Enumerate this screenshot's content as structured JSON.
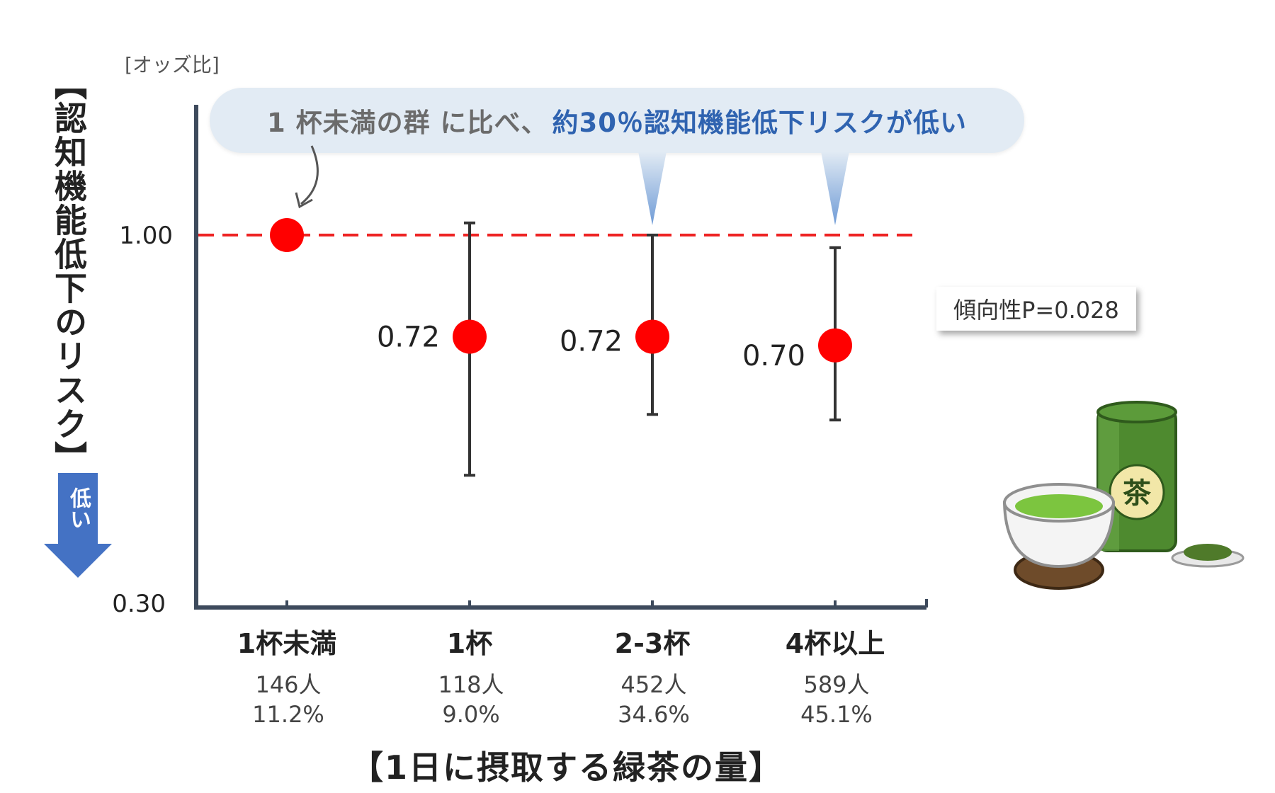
{
  "chart_data": {
    "type": "scatter",
    "y_unit_label": "[オッズ比]",
    "ylabel": "【認知機能低下のリスク】",
    "xlabel": "【1日に摂取する緑茶の量】",
    "yscale": "log",
    "ylim": [
      0.3,
      1.3
    ],
    "yticks": [
      "1.00",
      "0.30"
    ],
    "reference_line": 1.0,
    "categories": [
      "1杯未満",
      "1杯",
      "2-3杯",
      "4杯以上"
    ],
    "counts": [
      "146人",
      "118人",
      "452人",
      "589人"
    ],
    "percents": [
      "11.2%",
      "9.0%",
      "34.6%",
      "45.1%"
    ],
    "points": [
      {
        "odds": 1.0,
        "label": "",
        "ci": null
      },
      {
        "odds": 0.72,
        "label": "0.72",
        "ci": [
          0.46,
          1.04
        ]
      },
      {
        "odds": 0.72,
        "label": "0.72",
        "ci": [
          0.56,
          1.0
        ]
      },
      {
        "odds": 0.7,
        "label": "0.70",
        "ci": [
          0.55,
          0.96
        ]
      }
    ],
    "colors": {
      "point": "#ff0000",
      "refline": "#ee2222",
      "axis": "#3d4a5c",
      "errorbar": "#333333"
    }
  },
  "callout": {
    "part1": "1 杯未満の群 に比べ、",
    "part2": "約30％認知機能低下リスクが低い"
  },
  "trend": "傾向性P=0.028",
  "low_arrow": {
    "text": "低い",
    "color": "#4472c4"
  }
}
